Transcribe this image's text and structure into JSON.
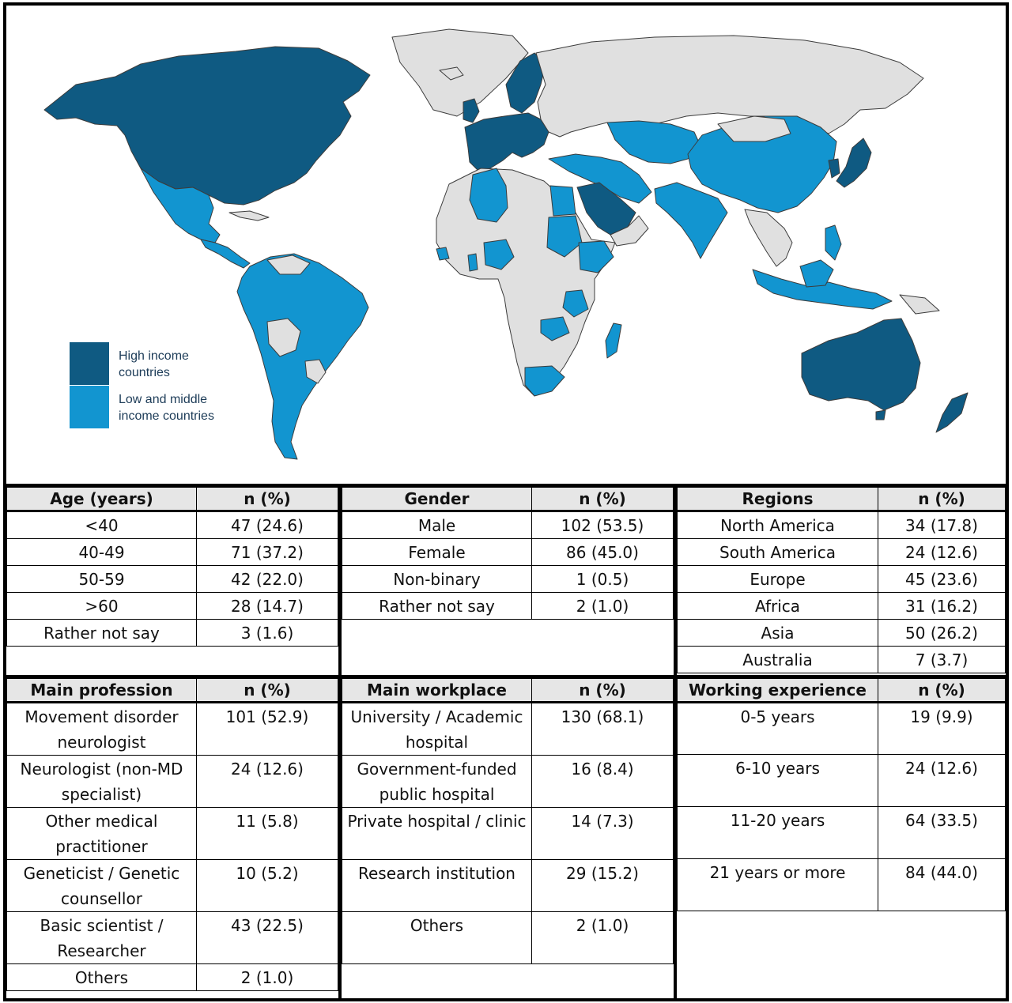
{
  "legend": {
    "high_income": {
      "label": "High income\ncountries",
      "color": "#0f5a82"
    },
    "lmic": {
      "label": "Low and middle\nincome countries",
      "color": "#1295d0"
    }
  },
  "colors": {
    "no_data": "#e0e0e0",
    "border": "#3c3c3c",
    "header_bg": "#e6e6e6"
  },
  "age": {
    "header": [
      "Age (years)",
      "n (%)"
    ],
    "rows": [
      [
        "<40",
        "47 (24.6)"
      ],
      [
        "40-49",
        "71 (37.2)"
      ],
      [
        "50-59",
        "42 (22.0)"
      ],
      [
        ">60",
        "28 (14.7)"
      ],
      [
        "Rather not say",
        "3 (1.6)"
      ]
    ]
  },
  "gender": {
    "header": [
      "Gender",
      "n (%)"
    ],
    "rows": [
      [
        "Male",
        "102 (53.5)"
      ],
      [
        "Female",
        "86 (45.0)"
      ],
      [
        "Non-binary",
        "1 (0.5)"
      ],
      [
        "Rather not say",
        "2 (1.0)"
      ]
    ]
  },
  "regions": {
    "header": [
      "Regions",
      "n (%)"
    ],
    "rows": [
      [
        "North America",
        "34 (17.8)"
      ],
      [
        "South America",
        "24 (12.6)"
      ],
      [
        "Europe",
        "45 (23.6)"
      ],
      [
        "Africa",
        "31 (16.2)"
      ],
      [
        "Asia",
        "50 (26.2)"
      ],
      [
        "Australia",
        "7 (3.7)"
      ]
    ]
  },
  "profession": {
    "header": [
      "Main profession",
      "n (%)"
    ],
    "rows": [
      [
        "Movement disorder neurologist",
        "101 (52.9)"
      ],
      [
        "Neurologist (non-MD specialist)",
        "24 (12.6)"
      ],
      [
        "Other medical practitioner",
        "11 (5.8)"
      ],
      [
        "Geneticist / Genetic counsellor",
        "10 (5.2)"
      ],
      [
        "Basic scientist / Researcher",
        "43 (22.5)"
      ],
      [
        "Others",
        "2 (1.0)"
      ]
    ]
  },
  "workplace": {
    "header": [
      "Main workplace",
      "n (%)"
    ],
    "rows": [
      [
        "University / Academic hospital",
        "130 (68.1)"
      ],
      [
        "Government-funded public hospital",
        "16 (8.4)"
      ],
      [
        "Private hospital / clinic",
        "14 (7.3)"
      ],
      [
        "Research institution",
        "29 (15.2)"
      ],
      [
        "Others",
        "2 (1.0)"
      ]
    ]
  },
  "experience": {
    "header": [
      "Working experience",
      "n (%)"
    ],
    "rows": [
      [
        "0-5 years",
        "19 (9.9)"
      ],
      [
        "6-10  years",
        "24 (12.6)"
      ],
      [
        "11-20 years",
        "64 (33.5)"
      ],
      [
        "21 years or more",
        "84 (44.0)"
      ]
    ]
  }
}
